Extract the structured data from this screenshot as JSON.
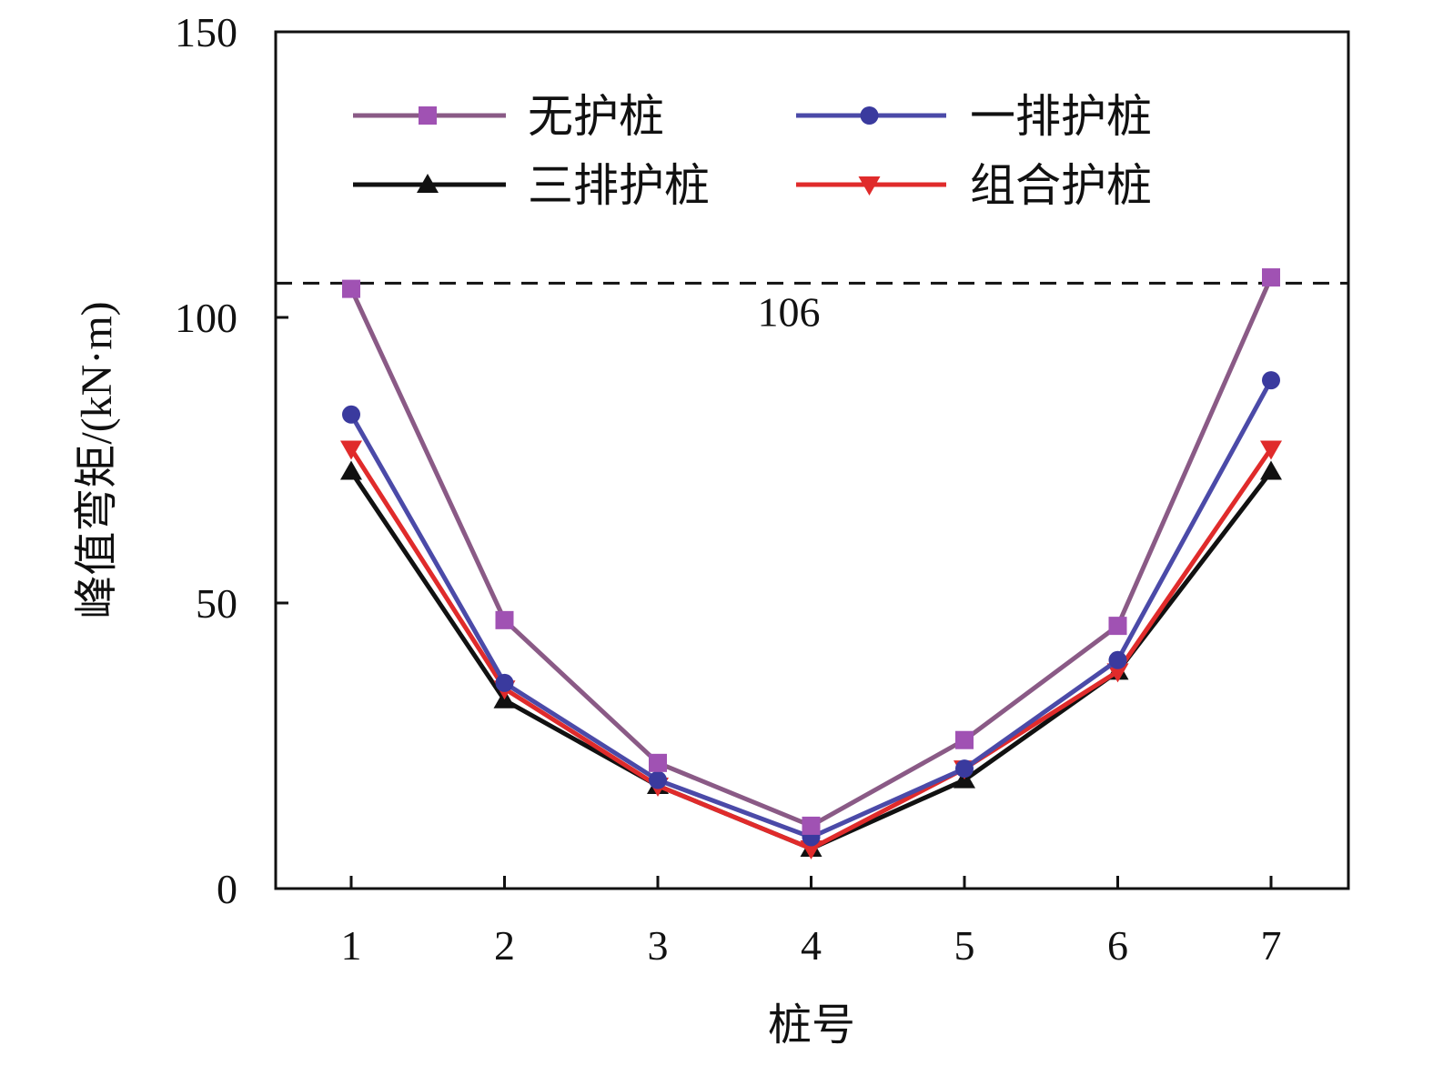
{
  "chart_data": {
    "type": "line",
    "title": "",
    "xlabel": "桩号",
    "ylabel": "峰值弯矩/(kN·m)",
    "categories": [
      "1",
      "2",
      "3",
      "4",
      "5",
      "6",
      "7"
    ],
    "ylim": [
      0,
      150
    ],
    "yticks": [
      0,
      50,
      100,
      150
    ],
    "grid": false,
    "legend_position": "top",
    "series": [
      {
        "name": "无护桩",
        "marker": "square",
        "color": "#a052b3",
        "line_color": "#8a5a86",
        "values": [
          105,
          47,
          22,
          11,
          26,
          46,
          107
        ]
      },
      {
        "name": "一排护桩",
        "marker": "circle",
        "color": "#3a3a9e",
        "line_color": "#4b4aa8",
        "values": [
          83,
          36,
          19,
          9,
          21,
          40,
          89
        ]
      },
      {
        "name": "三排护桩",
        "marker": "triangle-up",
        "color": "#111111",
        "line_color": "#111111",
        "values": [
          73,
          33,
          18,
          7,
          19,
          38,
          73
        ]
      },
      {
        "name": "组合护桩",
        "marker": "triangle-down",
        "color": "#e02b2b",
        "line_color": "#e02b2b",
        "values": [
          77,
          35,
          18,
          7,
          21,
          38,
          77
        ]
      }
    ],
    "reference_line": {
      "value": 106,
      "label": "106",
      "style": "dashed"
    }
  }
}
